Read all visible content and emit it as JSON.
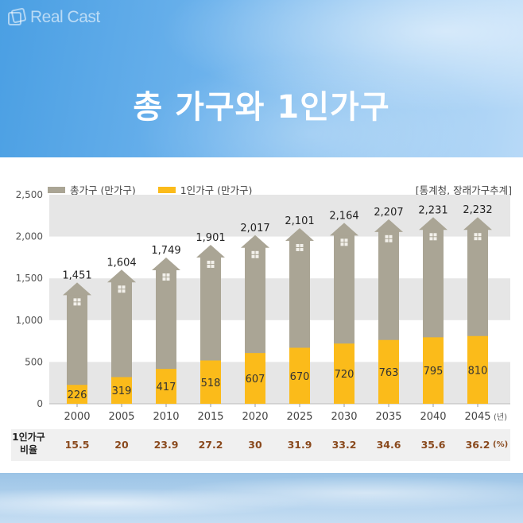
{
  "brand": {
    "logo_text": "Real Cast",
    "icon": "realcast-logo-icon"
  },
  "header": {
    "title": "총 가구와 1인가구"
  },
  "legend": [
    {
      "label": "총가구 (만가구)",
      "color": "#aaa595"
    },
    {
      "label": "1인가구 (만가구)",
      "color": "#fbbb1a"
    }
  ],
  "source": "[통계청, 장래가구추계]",
  "ratio": {
    "label_line1": "1인가구",
    "label_line2": "비율",
    "unit": "(%)",
    "values": [
      "15.5",
      "20",
      "23.9",
      "27.2",
      "30",
      "31.9",
      "33.2",
      "34.6",
      "35.6",
      "36.2"
    ]
  },
  "chart_data": {
    "type": "bar",
    "title": "총 가구와 1인가구",
    "xlabel": "",
    "x_unit": "(년)",
    "ylabel": "",
    "ylim": [
      0,
      2500
    ],
    "yticks": [
      0,
      500,
      1000,
      1500,
      2000,
      2500
    ],
    "ytick_labels": [
      "0",
      "500",
      "1,000",
      "1,500",
      "2,000",
      "2,500"
    ],
    "grid": "alternating horizontal bands",
    "legend_position": "top-left",
    "categories": [
      "2000",
      "2005",
      "2010",
      "2015",
      "2020",
      "2025",
      "2030",
      "2035",
      "2040",
      "2045"
    ],
    "series": [
      {
        "name": "총가구 (만가구)",
        "color": "#aaa595",
        "values": [
          1451,
          1604,
          1749,
          1901,
          2017,
          2101,
          2164,
          2207,
          2231,
          2232
        ],
        "labels": [
          "1,451",
          "1,604",
          "1,749",
          "1,901",
          "2,017",
          "2,101",
          "2,164",
          "2,207",
          "2,231",
          "2,232"
        ]
      },
      {
        "name": "1인가구 (만가구)",
        "color": "#fbbb1a",
        "values": [
          226,
          319,
          417,
          518,
          607,
          670,
          720,
          763,
          795,
          810
        ],
        "labels": [
          "226",
          "319",
          "417",
          "518",
          "607",
          "670",
          "720",
          "763",
          "795",
          "810"
        ]
      }
    ],
    "ratio_percent": [
      15.5,
      20,
      23.9,
      27.2,
      30,
      31.9,
      33.2,
      34.6,
      35.6,
      36.2
    ]
  }
}
